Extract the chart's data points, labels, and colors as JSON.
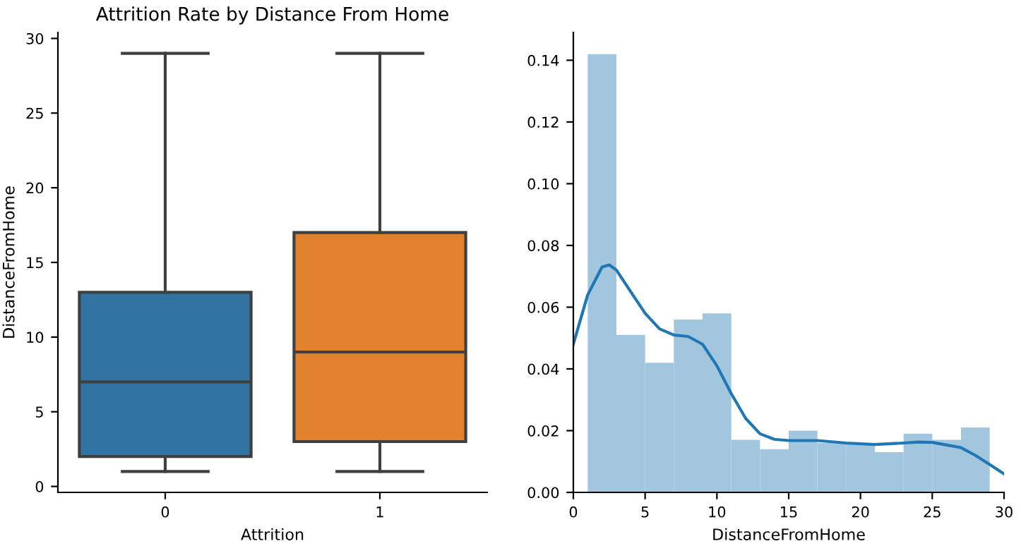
{
  "chart_data": [
    {
      "type": "box",
      "title": "Attrition Rate by Distance From Home",
      "xlabel": "Attrition",
      "ylabel": "DistanceFromHome",
      "categories": [
        "0",
        "1"
      ],
      "colors": [
        "#3274a1",
        "#e1812c"
      ],
      "boxes": [
        {
          "low": 1,
          "q1": 2,
          "median": 7,
          "q3": 13,
          "high": 29
        },
        {
          "low": 1,
          "q1": 3,
          "median": 9,
          "q3": 17,
          "high": 29
        }
      ],
      "ylim": [
        -0.4,
        30.4
      ],
      "yticks": [
        0,
        5,
        10,
        15,
        20,
        25,
        30
      ],
      "grid": false
    },
    {
      "type": "histogram",
      "xlabel": "DistanceFromHome",
      "xlim": [
        0,
        30
      ],
      "xticks": [
        0,
        5,
        10,
        15,
        20,
        25,
        30
      ],
      "ylim": [
        0,
        0.149
      ],
      "yticks": [
        {
          "value": 0,
          "label": "0.00"
        },
        {
          "value": 0.02,
          "label": "0.02"
        },
        {
          "value": 0.04,
          "label": "0.04"
        },
        {
          "value": 0.06,
          "label": "0.06"
        },
        {
          "value": 0.08,
          "label": "0.08"
        },
        {
          "value": 0.1,
          "label": "0.10"
        },
        {
          "value": 0.12,
          "label": "0.12"
        },
        {
          "value": 0.14,
          "label": "0.14"
        }
      ],
      "grid": false,
      "series": [
        {
          "type": "histogram",
          "color": "#a3c6df",
          "bins": [
            1,
            3,
            5,
            7,
            9,
            11,
            13,
            15,
            17,
            19,
            21,
            23,
            25,
            27,
            29
          ],
          "values": [
            0.142,
            0.051,
            0.042,
            0.056,
            0.058,
            0.017,
            0.014,
            0.02,
            0.016,
            0.016,
            0.013,
            0.019,
            0.017,
            0.021
          ]
        },
        {
          "type": "line",
          "color": "#1f77b4",
          "x": [
            0,
            1,
            2,
            2.5,
            3,
            4,
            5,
            6,
            7,
            8,
            9,
            10,
            11,
            12,
            13,
            14,
            15,
            17,
            19,
            21,
            23,
            24,
            25,
            27,
            28,
            29,
            30
          ],
          "values": [
            0.048,
            0.064,
            0.073,
            0.0737,
            0.072,
            0.065,
            0.058,
            0.053,
            0.051,
            0.0505,
            0.048,
            0.041,
            0.032,
            0.024,
            0.019,
            0.0172,
            0.0168,
            0.0168,
            0.016,
            0.0155,
            0.016,
            0.0163,
            0.0162,
            0.0145,
            0.012,
            0.009,
            0.006
          ]
        }
      ]
    }
  ]
}
